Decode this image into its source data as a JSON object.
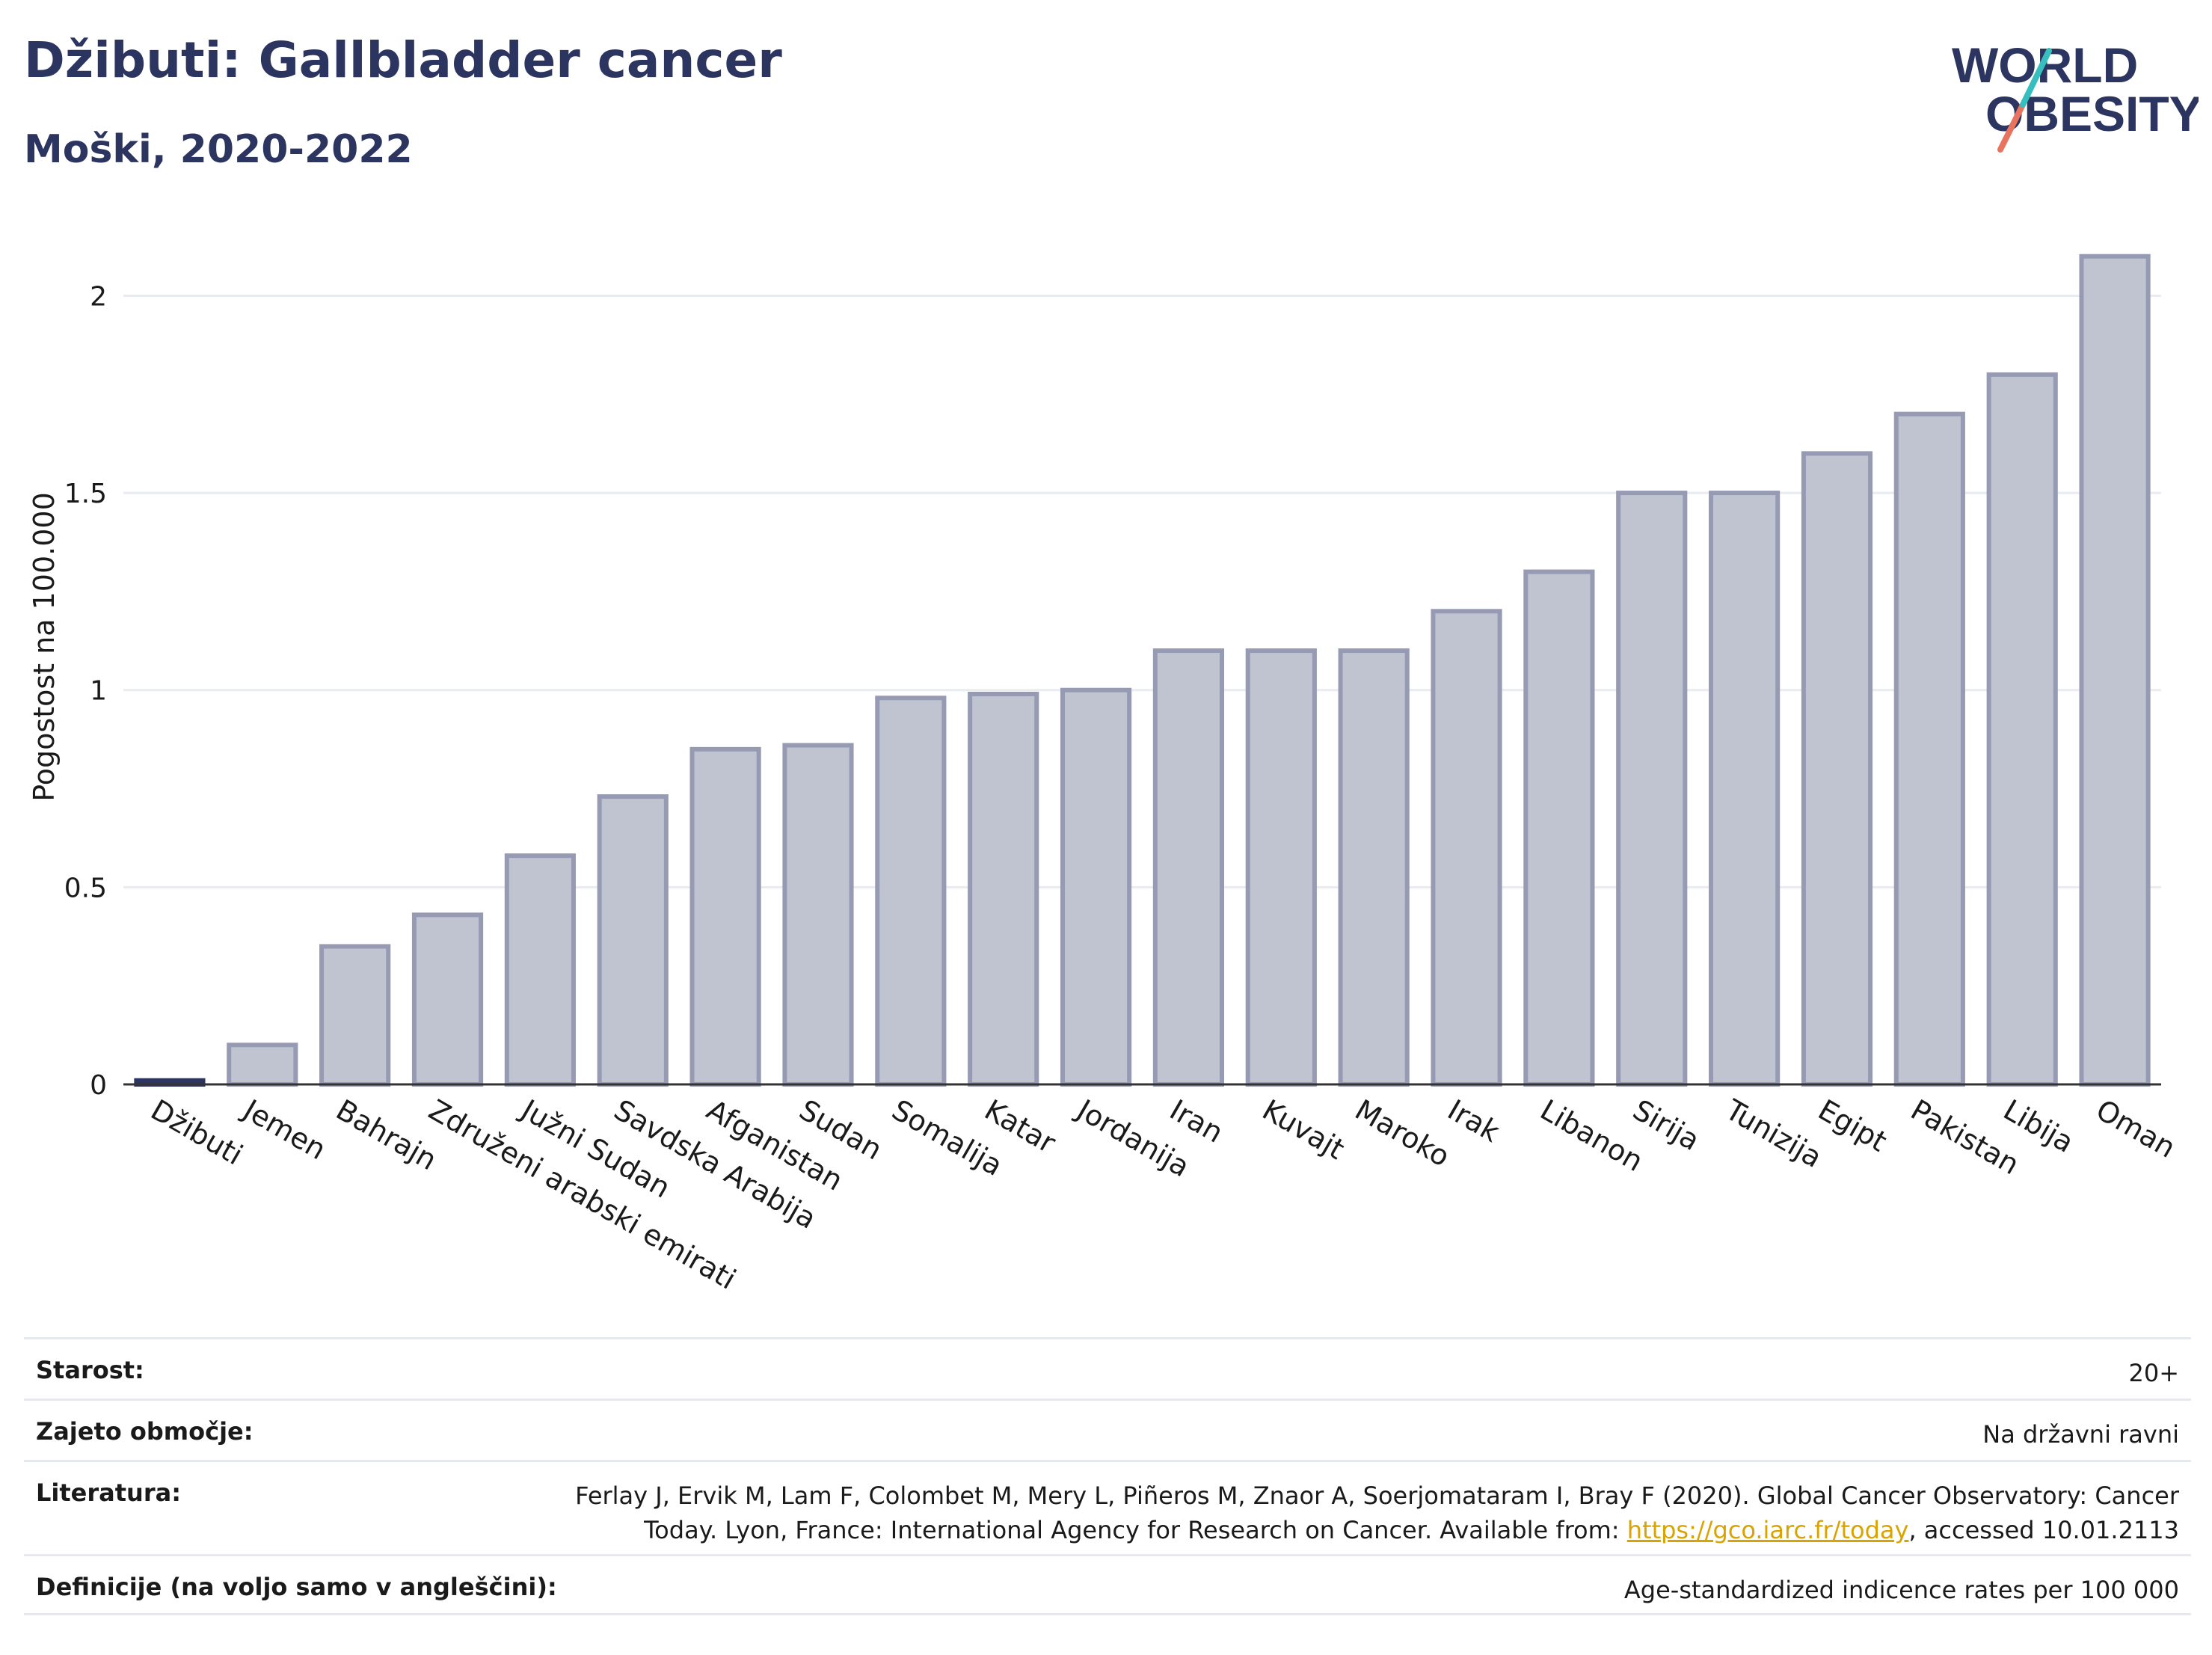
{
  "header": {
    "title": "Džibuti: Gallbladder cancer",
    "subtitle": "Moški, 2020-2022"
  },
  "logo": {
    "line1": "WORLD",
    "line2": "OBESITY"
  },
  "chart_data": {
    "type": "bar",
    "ylabel": "Pogostost na 100.000",
    "ylim": [
      0,
      2.2
    ],
    "yticks": [
      0,
      0.5,
      1,
      1.5,
      2
    ],
    "ytick_labels": [
      "0",
      "0.5",
      "1",
      "1.5",
      "2"
    ],
    "grid": true,
    "highlight_category": "Džibuti",
    "colors": {
      "bar": "#c0c3d0",
      "bar_stroke": "#969bb3",
      "highlight": "#2b3560",
      "grid": "#e8ebef",
      "axis": "#333333"
    },
    "categories": [
      "Džibuti",
      "Jemen",
      "Bahrajn",
      "Združeni arabski emirati",
      "Južni Sudan",
      "Savdska Arabija",
      "Afganistan",
      "Sudan",
      "Somalija",
      "Katar",
      "Jordanija",
      "Iran",
      "Kuvajt",
      "Maroko",
      "Irak",
      "Libanon",
      "Sirija",
      "Tunizija",
      "Egipt",
      "Pakistan",
      "Libija",
      "Oman"
    ],
    "values": [
      0.01,
      0.1,
      0.35,
      0.43,
      0.58,
      0.73,
      0.85,
      0.86,
      0.98,
      0.99,
      1.0,
      1.1,
      1.1,
      1.1,
      1.2,
      1.3,
      1.5,
      1.5,
      1.6,
      1.7,
      1.8,
      2.1
    ]
  },
  "meta": {
    "age_label": "Starost:",
    "age_value": "20+",
    "area_label": "Zajeto območje:",
    "area_value": "Na državni ravni",
    "ref_label": "Literatura:",
    "ref_line1": "Ferlay J, Ervik M, Lam F, Colombet M, Mery L, Piñeros M, Znaor A, Soerjomataram I, Bray F (2020). Global Cancer Observatory: Cancer",
    "ref_line2_pre": "Today. Lyon, France: International Agency for Research on Cancer. Available from: ",
    "ref_link": "https://gco.iarc.fr/today",
    "ref_line2_post": ", accessed 10.01.2113",
    "def_label": "Definicije (na voljo samo v angleščini):",
    "def_value": "Age-standardized indicence rates per 100 000"
  }
}
